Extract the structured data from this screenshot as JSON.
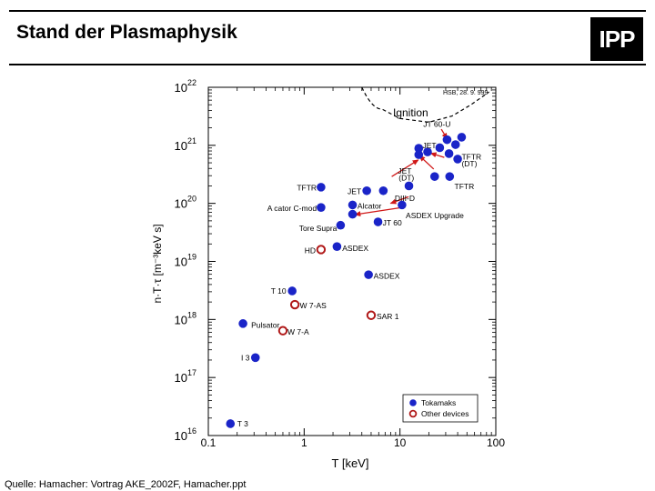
{
  "slide": {
    "title": "Stand der Plasmaphysik",
    "logo_text": "IPP",
    "footer": "Quelle: Hamacher: Vortrag AKE_2002F, Hamacher.ppt"
  },
  "colors": {
    "tokamak": "#1a24c8",
    "other": "#b01818",
    "arrow": "#d01818"
  },
  "chart_data": {
    "type": "scatter",
    "title": "",
    "xlabel": "T [keV]",
    "ylabel": "n·T·τ  [m⁻³keV s]",
    "xscale": "log",
    "yscale": "log",
    "xlim": [
      0.1,
      100
    ],
    "ylim": [
      1e+16,
      1e+22
    ],
    "x_ticks": [
      "0.1",
      "1",
      "10",
      "100"
    ],
    "y_ticks": [
      {
        "mant": "10",
        "exp": "16"
      },
      {
        "mant": "10",
        "exp": "17"
      },
      {
        "mant": "10",
        "exp": "18"
      },
      {
        "mant": "10",
        "exp": "19"
      },
      {
        "mant": "10",
        "exp": "20"
      },
      {
        "mant": "10",
        "exp": "21"
      },
      {
        "mant": "10",
        "exp": "22"
      }
    ],
    "stamp": "HSB, 28. 9.   999",
    "ignition_label": "Ignition",
    "series": [
      {
        "name": "Tokamaks",
        "points": [
          {
            "x": 0.17,
            "y": 1.6e+16
          },
          {
            "x": 0.31,
            "y": 2.2e+17
          },
          {
            "x": 0.23,
            "y": 8.5e+17
          },
          {
            "x": 0.75,
            "y": 3.1e+18
          },
          {
            "x": 4.7,
            "y": 5.9e+18
          },
          {
            "x": 2.2,
            "y": 1.8e+19
          },
          {
            "x": 2.4,
            "y": 4.2e+19
          },
          {
            "x": 3.2,
            "y": 6.5e+19
          },
          {
            "x": 5.9,
            "y": 4.8e+19
          },
          {
            "x": 1.5,
            "y": 8.5e+19
          },
          {
            "x": 3.2,
            "y": 9.4e+19
          },
          {
            "x": 10.5,
            "y": 9.4e+19
          },
          {
            "x": 1.5,
            "y": 1.9e+20
          },
          {
            "x": 4.5,
            "y": 1.65e+20
          },
          {
            "x": 6.7,
            "y": 1.65e+20
          },
          {
            "x": 12.4,
            "y": 2e+20
          },
          {
            "x": 23.0,
            "y": 2.9e+20
          },
          {
            "x": 33.0,
            "y": 2.9e+20
          },
          {
            "x": 15.7,
            "y": 6.9e+20
          },
          {
            "x": 15.7,
            "y": 8.9e+20
          },
          {
            "x": 19.4,
            "y": 7.7e+20
          },
          {
            "x": 26.0,
            "y": 9.1e+20
          },
          {
            "x": 32.5,
            "y": 7.2e+20
          },
          {
            "x": 40.0,
            "y": 5.8e+20
          },
          {
            "x": 38.0,
            "y": 1.03e+21
          },
          {
            "x": 44.0,
            "y": 1.38e+21
          },
          {
            "x": 31.0,
            "y": 1.25e+21
          }
        ]
      },
      {
        "name": "Other devices",
        "points": [
          {
            "x": 1.5,
            "y": 1.6e+19
          },
          {
            "x": 0.8,
            "y": 1.8e+18
          },
          {
            "x": 0.6,
            "y": 6.4e+17
          },
          {
            "x": 5.0,
            "y": 1.18e+18
          }
        ]
      }
    ],
    "labels": [
      {
        "text": "T 3",
        "x": 0.2,
        "y": 1.6e+16,
        "anchor": "start"
      },
      {
        "text": "I 3",
        "x": 0.27,
        "y": 2.2e+17,
        "anchor": "end"
      },
      {
        "text": "Pulsator",
        "x": 0.28,
        "y": 8e+17,
        "anchor": "start"
      },
      {
        "text": "W 7-A",
        "x": 0.67,
        "y": 6.1e+17,
        "anchor": "start"
      },
      {
        "text": "T 10",
        "x": 0.65,
        "y": 3.1e+18,
        "anchor": "end"
      },
      {
        "text": "W 7-AS",
        "x": 0.9,
        "y": 1.75e+18,
        "anchor": "start"
      },
      {
        "text": "SAR 1",
        "x": 5.7,
        "y": 1.12e+18,
        "anchor": "start"
      },
      {
        "text": "ASDEX",
        "x": 5.3,
        "y": 5.6e+18,
        "anchor": "start"
      },
      {
        "text": "HD",
        "x": 1.32,
        "y": 1.55e+19,
        "anchor": "end"
      },
      {
        "text": "ASDEX",
        "x": 2.5,
        "y": 1.7e+19,
        "anchor": "start"
      },
      {
        "text": "Tore Supra",
        "x": 2.2,
        "y": 3.7e+19,
        "anchor": "end"
      },
      {
        "text": "JT 60",
        "x": 6.6,
        "y": 4.6e+19,
        "anchor": "start"
      },
      {
        "text": "A cator C-mod",
        "x": 1.35,
        "y": 8.2e+19,
        "anchor": "end"
      },
      {
        "text": "Alcator",
        "x": 3.6,
        "y": 9e+19,
        "anchor": "start"
      },
      {
        "text": "ASDEX Upgrade",
        "x": 11.5,
        "y": 6.2e+19,
        "anchor": "start"
      },
      {
        "text": "DIII-D",
        "x": 8.8,
        "y": 1.22e+20,
        "anchor": "start"
      },
      {
        "text": "TFTR",
        "x": 1.35,
        "y": 1.85e+20,
        "anchor": "end"
      },
      {
        "text": "JET",
        "x": 3.95,
        "y": 1.6e+20,
        "anchor": "end"
      },
      {
        "text": "TFTR",
        "x": 37.0,
        "y": 1.95e+20,
        "anchor": "start"
      },
      {
        "text": "JET",
        "x": 9.5,
        "y": 3.6e+20,
        "anchor": "start"
      },
      {
        "text": "(DT)",
        "x": 9.7,
        "y": 2.75e+20,
        "anchor": "start"
      },
      {
        "text": "TFTR",
        "x": 44.0,
        "y": 6.3e+20,
        "anchor": "start"
      },
      {
        "text": "(DT)",
        "x": 44.0,
        "y": 4.8e+20,
        "anchor": "start"
      },
      {
        "text": "JET",
        "x": 17.2,
        "y": 1e+21,
        "anchor": "start"
      },
      {
        "text": "JT 60-U",
        "x": 17.5,
        "y": 2.3e+21,
        "anchor": "start"
      }
    ],
    "arrows": [
      {
        "from": {
          "x": 11.0,
          "y": 8.6e+19
        },
        "to": {
          "x": 3.4,
          "y": 6.4e+19
        }
      },
      {
        "from": {
          "x": 12.3,
          "y": 1.3e+20
        },
        "to": {
          "x": 8.0,
          "y": 1e+20
        }
      },
      {
        "from": {
          "x": 8.2,
          "y": 2.9e+20
        },
        "to": {
          "x": 15.5,
          "y": 5.6e+20
        }
      },
      {
        "from": {
          "x": 22.5,
          "y": 3.9e+20
        },
        "to": {
          "x": 16.0,
          "y": 6.6e+20
        }
      },
      {
        "from": {
          "x": 29.0,
          "y": 6.2e+20
        },
        "to": {
          "x": 21.0,
          "y": 7.3e+20
        }
      },
      {
        "from": {
          "x": 27.0,
          "y": 1.9e+21
        },
        "to": {
          "x": 31.0,
          "y": 1.3e+21
        }
      }
    ],
    "ignition_curve": [
      {
        "x": 4.0,
        "y": 1e+22
      },
      {
        "x": 6.5,
        "y": 4.2e+21
      },
      {
        "x": 10.0,
        "y": 2.9e+21
      },
      {
        "x": 20.0,
        "y": 2.5e+21
      },
      {
        "x": 35.0,
        "y": 3.2e+21
      },
      {
        "x": 55.0,
        "y": 5e+21
      },
      {
        "x": 85.0,
        "y": 8.3e+21
      }
    ],
    "legend": {
      "position": "bottom-right",
      "entries": [
        "Tokamaks",
        "Other devices"
      ]
    }
  }
}
